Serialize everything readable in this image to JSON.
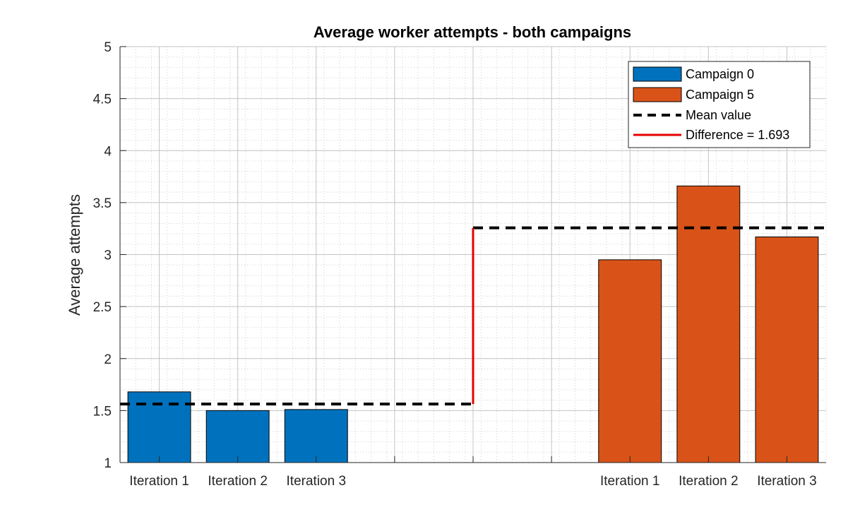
{
  "chart_data": {
    "type": "bar",
    "title": "Average worker attempts - both campaigns",
    "xlabel": "",
    "ylabel": "Average attempts",
    "ylim": [
      1,
      5
    ],
    "yticks": [
      "1",
      "1.5",
      "2",
      "2.5",
      "3",
      "3.5",
      "4",
      "4.5",
      "5"
    ],
    "xlim": [
      0.5,
      9.5
    ],
    "xticks": [
      1,
      2,
      3,
      4,
      5,
      6,
      7,
      8,
      9
    ],
    "xtick_labels": [
      "Iteration 1",
      "Iteration 2",
      "Iteration 3",
      "",
      "",
      "",
      "Iteration 1",
      "Iteration 2",
      "Iteration 3"
    ],
    "grid": true,
    "minor_grid": true,
    "legend_location": "top-right",
    "series": [
      {
        "name": "Campaign 0",
        "color": "#0072BD",
        "x": [
          1,
          2,
          3
        ],
        "values": [
          1.68,
          1.5,
          1.51
        ]
      },
      {
        "name": "Campaign 5",
        "color": "#D95319",
        "x": [
          7,
          8,
          9
        ],
        "values": [
          2.95,
          3.66,
          3.17
        ]
      }
    ],
    "mean_lines": {
      "name": "Mean value",
      "color": "#000000",
      "segments": [
        {
          "x": [
            0.5,
            5.0
          ],
          "y": 1.563
        },
        {
          "x": [
            5.0,
            9.5
          ],
          "y": 3.257
        }
      ]
    },
    "difference": {
      "name": "Difference = 1.693",
      "color": "#E60000",
      "x": 5.0,
      "y": [
        1.563,
        3.257
      ]
    }
  }
}
